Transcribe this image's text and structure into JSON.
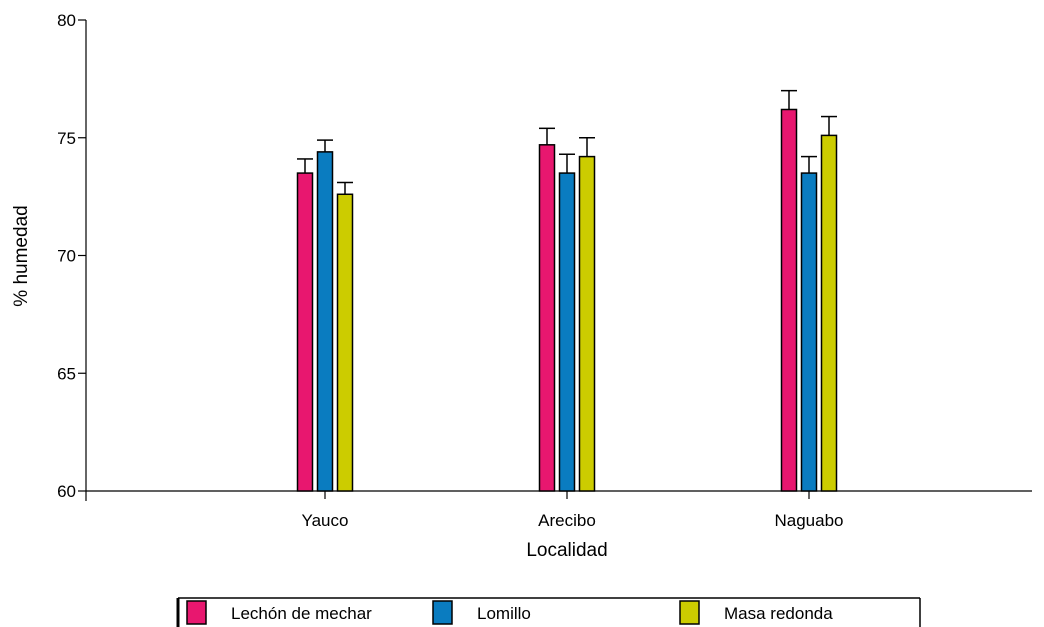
{
  "chart_data": {
    "type": "bar",
    "xlabel": "Localidad",
    "ylabel": "% humedad",
    "ylim": [
      60,
      80
    ],
    "yticks": [
      "60",
      "65",
      "70",
      "75",
      "80"
    ],
    "categories": [
      "Yauco",
      "Arecibo",
      "Naguabo"
    ],
    "series": [
      {
        "name": "Lechón de mechar",
        "color": "#e8176f",
        "values": [
          73.5,
          74.7,
          76.2
        ],
        "errors": [
          0.6,
          0.7,
          0.8
        ]
      },
      {
        "name": "Lomillo",
        "color": "#0a7cc0",
        "values": [
          74.4,
          73.5,
          73.5
        ],
        "errors": [
          0.5,
          0.8,
          0.7
        ]
      },
      {
        "name": "Masa redonda",
        "color": "#cccc00",
        "values": [
          72.6,
          74.2,
          75.1
        ],
        "errors": [
          0.5,
          0.8,
          0.8
        ]
      }
    ],
    "grid": false,
    "legend": "bottom",
    "error_bars": "upper"
  }
}
